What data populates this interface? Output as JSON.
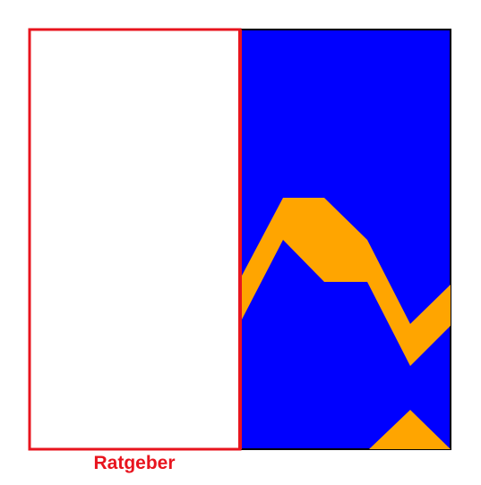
{
  "panel_label": "Ratgeber",
  "colors": {
    "background": "#ffffff",
    "advisor_border": "#e8141e",
    "label": "#e8141e",
    "field": "#0000ff",
    "field_border": "#000000",
    "shape": "#ffa500"
  }
}
